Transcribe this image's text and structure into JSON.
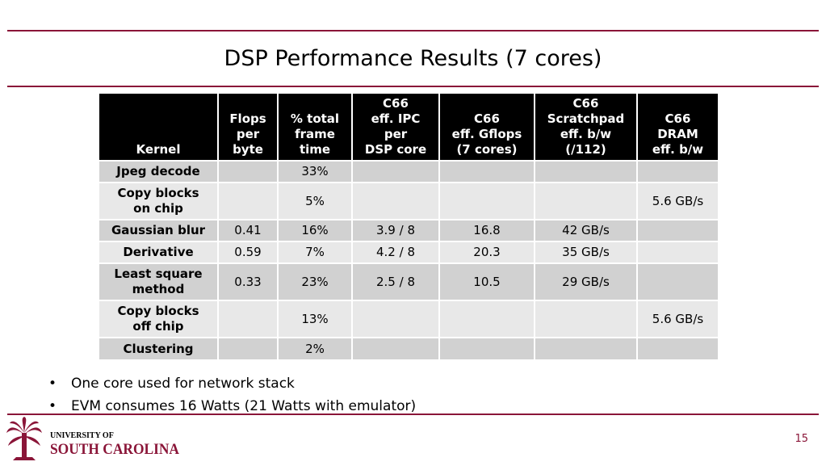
{
  "slide": {
    "title": "DSP Performance Results (7 cores)",
    "page_number": "15"
  },
  "table": {
    "headers": [
      "Kernel",
      "Flops\nper\nbyte",
      "% total\nframe\ntime",
      "C66\neff. IPC\nper\nDSP core",
      "C66\neff. Gflops\n(7 cores)",
      "C66\nScratchpad\neff. b/w\n(/112)",
      "C66\nDRAM\neff. b/w"
    ],
    "rows": [
      [
        "Jpeg decode",
        "",
        "33%",
        "",
        "",
        "",
        ""
      ],
      [
        "Copy blocks\non chip",
        "",
        "5%",
        "",
        "",
        "",
        "5.6 GB/s"
      ],
      [
        "Gaussian blur",
        "0.41",
        "16%",
        "3.9 / 8",
        "16.8",
        "42 GB/s",
        ""
      ],
      [
        "Derivative",
        "0.59",
        "7%",
        "4.2 / 8",
        "20.3",
        "35 GB/s",
        ""
      ],
      [
        "Least square\nmethod",
        "0.33",
        "23%",
        "2.5 / 8",
        "10.5",
        "29 GB/s",
        ""
      ],
      [
        "Copy blocks\noff chip",
        "",
        "13%",
        "",
        "",
        "",
        "5.6 GB/s"
      ],
      [
        "Clustering",
        "",
        "2%",
        "",
        "",
        "",
        ""
      ]
    ]
  },
  "bullets": [
    "One core used for network stack",
    "EVM consumes 16 Watts (21 Watts with emulator)"
  ],
  "logo": {
    "line1": "UNIVERSITY OF",
    "line2": "SOUTH CAROLINA"
  },
  "colors": {
    "accent": "#8a1538",
    "header_bg": "#000000",
    "row_dark": "#d1d1d1",
    "row_light": "#e8e8e8"
  }
}
